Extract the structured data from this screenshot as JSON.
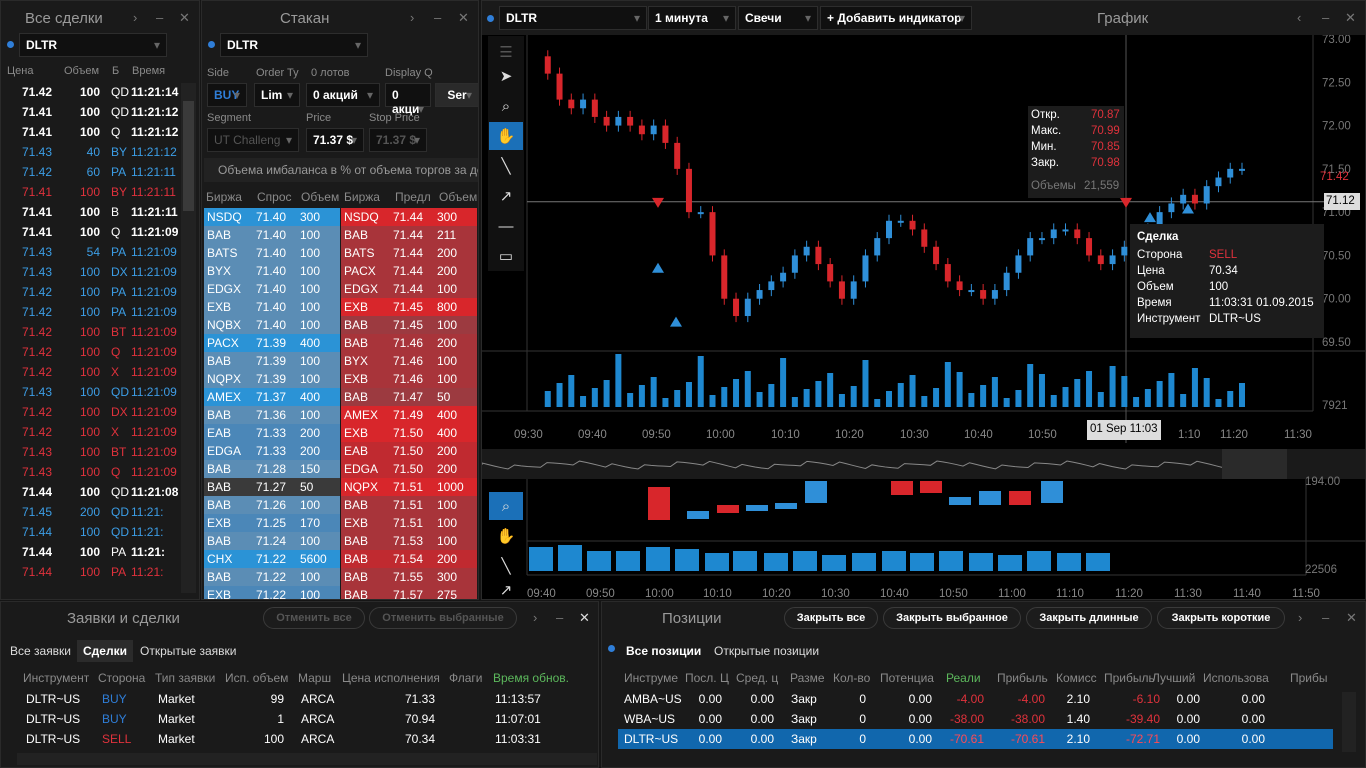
{
  "trades": {
    "title": "Все сделки",
    "symbol": "DLTR",
    "cols": [
      "Цена",
      "Объем",
      "Б",
      "Время"
    ],
    "rows": [
      [
        "71.42",
        "100",
        "QD",
        "11:21:14",
        "w"
      ],
      [
        "71.41",
        "100",
        "QD",
        "11:21:12",
        "w"
      ],
      [
        "71.41",
        "100",
        "Q",
        "11:21:12",
        "w"
      ],
      [
        "71.43",
        "40",
        "BY",
        "11:21:12",
        "b"
      ],
      [
        "71.42",
        "60",
        "PA",
        "11:21:11",
        "b"
      ],
      [
        "71.41",
        "100",
        "BY",
        "11:21:11",
        "r"
      ],
      [
        "71.41",
        "100",
        "B",
        "11:21:11",
        "w"
      ],
      [
        "71.41",
        "100",
        "Q",
        "11:21:09",
        "w"
      ],
      [
        "71.43",
        "54",
        "PA",
        "11:21:09",
        "b"
      ],
      [
        "71.43",
        "100",
        "DX",
        "11:21:09",
        "b"
      ],
      [
        "71.42",
        "100",
        "PA",
        "11:21:09",
        "b"
      ],
      [
        "71.42",
        "100",
        "PA",
        "11:21:09",
        "b"
      ],
      [
        "71.42",
        "100",
        "BT",
        "11:21:09",
        "r"
      ],
      [
        "71.42",
        "100",
        "Q",
        "11:21:09",
        "r"
      ],
      [
        "71.42",
        "100",
        "X",
        "11:21:09",
        "r"
      ],
      [
        "71.43",
        "100",
        "QD",
        "11:21:09",
        "b"
      ],
      [
        "71.42",
        "100",
        "DX",
        "11:21:09",
        "r"
      ],
      [
        "71.42",
        "100",
        "X",
        "11:21:09",
        "r"
      ],
      [
        "71.43",
        "100",
        "BT",
        "11:21:09",
        "r"
      ],
      [
        "71.43",
        "100",
        "Q",
        "11:21:09",
        "r"
      ],
      [
        "71.44",
        "100",
        "QD",
        "11:21:08",
        "w"
      ],
      [
        "71.45",
        "200",
        "QD",
        "11:21:",
        "b"
      ],
      [
        "71.44",
        "100",
        "QD",
        "11:21:",
        "b"
      ],
      [
        "71.44",
        "100",
        "PA",
        "11:21:",
        "w"
      ],
      [
        "71.44",
        "100",
        "PA",
        "11:21:",
        "r"
      ]
    ]
  },
  "dom": {
    "title": "Стакан",
    "symbol": "DLTR",
    "side_label": "Side",
    "side": "BUY",
    "order_label": "Order Ty",
    "order": "Lim",
    "lots_label": "0 лотов",
    "qty": "0 акций",
    "display_label": "Display Q",
    "display": "0 акци",
    "send": "Ser",
    "segment_label": "Segment",
    "segment": "UT Challeng",
    "price_label": "Price",
    "price": "71.37 $",
    "stop_label": "Stop Price",
    "stop": "71.37 $",
    "imbalance": "Объема имбаланса в % от объема торгов за день",
    "cols": [
      "Биржа",
      "Спрос",
      "Объем",
      "Биржа",
      "Предл",
      "Объем"
    ],
    "bids": [
      [
        "NSDQ",
        "71.40",
        "300"
      ],
      [
        "BAB",
        "71.40",
        "100"
      ],
      [
        "BATS",
        "71.40",
        "100"
      ],
      [
        "BYX",
        "71.40",
        "100"
      ],
      [
        "EDGX",
        "71.40",
        "100"
      ],
      [
        "EXB",
        "71.40",
        "100"
      ],
      [
        "NQBX",
        "71.40",
        "100"
      ],
      [
        "PACX",
        "71.39",
        "400"
      ],
      [
        "BAB",
        "71.39",
        "100"
      ],
      [
        "NQPX",
        "71.39",
        "100"
      ],
      [
        "AMEX",
        "71.37",
        "400"
      ],
      [
        "BAB",
        "71.36",
        "100"
      ],
      [
        "EAB",
        "71.33",
        "200"
      ],
      [
        "EDGA",
        "71.33",
        "200"
      ],
      [
        "BAB",
        "71.28",
        "150"
      ],
      [
        "BAB",
        "71.27",
        "50"
      ],
      [
        "BAB",
        "71.26",
        "100"
      ],
      [
        "EXB",
        "71.25",
        "170"
      ],
      [
        "BAB",
        "71.24",
        "100"
      ],
      [
        "CHX",
        "71.22",
        "5600"
      ],
      [
        "BAB",
        "71.22",
        "100"
      ],
      [
        "EXB",
        "71.22",
        "100"
      ]
    ],
    "asks": [
      [
        "NSDQ",
        "71.44",
        "300"
      ],
      [
        "BAB",
        "71.44",
        "211"
      ],
      [
        "BATS",
        "71.44",
        "200"
      ],
      [
        "PACX",
        "71.44",
        "200"
      ],
      [
        "EDGX",
        "71.44",
        "100"
      ],
      [
        "EXB",
        "71.45",
        "800"
      ],
      [
        "BAB",
        "71.45",
        "100"
      ],
      [
        "BAB",
        "71.46",
        "200"
      ],
      [
        "BYX",
        "71.46",
        "100"
      ],
      [
        "EXB",
        "71.46",
        "100"
      ],
      [
        "BAB",
        "71.47",
        "50"
      ],
      [
        "AMEX",
        "71.49",
        "400"
      ],
      [
        "EXB",
        "71.50",
        "400"
      ],
      [
        "EAB",
        "71.50",
        "200"
      ],
      [
        "EDGA",
        "71.50",
        "200"
      ],
      [
        "NQPX",
        "71.51",
        "1000"
      ],
      [
        "BAB",
        "71.51",
        "100"
      ],
      [
        "EXB",
        "71.51",
        "100"
      ],
      [
        "BAB",
        "71.53",
        "100"
      ],
      [
        "BAB",
        "71.54",
        "200"
      ],
      [
        "BAB",
        "71.55",
        "300"
      ],
      [
        "BAB",
        "71.57",
        "275"
      ]
    ]
  },
  "chart": {
    "title": "График",
    "symbol": "DLTR",
    "interval": "1 минута",
    "type": "Свечи",
    "add_indicator": "+ Добавить индикатор",
    "ohlc": {
      "open_label": "Откр.",
      "open": "70.87",
      "high_label": "Макс.",
      "high": "70.99",
      "low_label": "Мин.",
      "low": "70.85",
      "close_label": "Закр.",
      "close": "70.98",
      "vol_label": "Объемы",
      "vol": "21,559"
    },
    "trade_tip": {
      "title": "Сделка",
      "side_label": "Сторона",
      "side": "SELL",
      "price_label": "Цена",
      "price": "70.34",
      "vol_label": "Объем",
      "vol": "100",
      "time_label": "Время",
      "time": "11:03:31 01.09.2015",
      "instr_label": "Инструмент",
      "instr": "DLTR~US"
    },
    "yticks": [
      "73.00",
      "72.50",
      "72.00",
      "71.50",
      "71.00",
      "70.50",
      "70.00",
      "69.50"
    ],
    "last_price": "71.42",
    "cursor_price": "71.12",
    "vol_tick": "7921",
    "xticks": [
      "09:30",
      "09:40",
      "09:50",
      "10:00",
      "10:10",
      "10:20",
      "10:30",
      "10:40",
      "10:50",
      "11:00",
      "11:10",
      "11:20",
      "11:30"
    ],
    "cursor_time": "01 Sep 11:03",
    "price_series": [
      72.8,
      72.6,
      72.3,
      72.2,
      72.3,
      72.1,
      72.0,
      72.1,
      72.0,
      71.9,
      72.0,
      71.8,
      71.5,
      71.0,
      71.0,
      70.5,
      70.0,
      69.8,
      70.0,
      70.1,
      70.2,
      70.3,
      70.5,
      70.6,
      70.4,
      70.2,
      70.0,
      70.2,
      70.5,
      70.7,
      70.9,
      70.9,
      70.8,
      70.6,
      70.4,
      70.2,
      70.1,
      70.1,
      70.0,
      70.1,
      70.3,
      70.5,
      70.7,
      70.7,
      70.8,
      70.8,
      70.7,
      70.5,
      70.4,
      70.5,
      70.6,
      70.7,
      70.8,
      71.0,
      71.1,
      71.2,
      71.1,
      71.3,
      71.4,
      71.5,
      71.5
    ],
    "sub_xticks": [
      "09:40",
      "09:50",
      "10:00",
      "10:10",
      "10:20",
      "10:30",
      "10:40",
      "10:50",
      "11:00",
      "11:10",
      "11:20",
      "11:30",
      "11:40",
      "11:50"
    ],
    "sub_vol_tick": "22506"
  },
  "orders": {
    "title": "Заявки и сделки",
    "cancel_all": "Отменить все",
    "cancel_sel": "Отменить выбранные",
    "tabs": [
      "Все заявки",
      "Сделки",
      "Открытые заявки"
    ],
    "cols": [
      "Инструмент",
      "Сторона",
      "Тип заявки",
      "Исп. объем",
      "Марш",
      "Цена исполнения",
      "Флаги",
      "Время обнов."
    ],
    "rows": [
      [
        "DLTR~US",
        "BUY",
        "Market",
        "99",
        "ARCA",
        "71.33",
        "",
        "11:13:57"
      ],
      [
        "DLTR~US",
        "BUY",
        "Market",
        "1",
        "ARCA",
        "70.94",
        "",
        "11:07:01"
      ],
      [
        "DLTR~US",
        "SELL",
        "Market",
        "100",
        "ARCA",
        "70.34",
        "",
        "11:03:31"
      ]
    ]
  },
  "positions": {
    "title": "Позиции",
    "close_all": "Закрыть все",
    "close_sel": "Закрыть выбранное",
    "close_long": "Закрыть длинные",
    "close_short": "Закрыть короткие",
    "tabs": [
      "Все позиции",
      "Открытые позиции"
    ],
    "cols": [
      "Инструме",
      "Посл. Ц",
      "Сред. ц",
      "Разме",
      "Кол-во",
      "Потенциа",
      "Реали",
      "Прибыль",
      "Комисс",
      "Прибыль",
      "Лучший",
      "Использова",
      "Прибы"
    ],
    "rows": [
      [
        "AMBA~US",
        "0.00",
        "0.00",
        "Закр",
        "0",
        "0.00",
        "-4.00",
        "-4.00",
        "2.10",
        "-6.10",
        "0.00",
        "0.00"
      ],
      [
        "WBA~US",
        "0.00",
        "0.00",
        "Закр",
        "0",
        "0.00",
        "-38.00",
        "-38.00",
        "1.40",
        "-39.40",
        "0.00",
        "0.00"
      ],
      [
        "DLTR~US",
        "0.00",
        "0.00",
        "Закр",
        "0",
        "0.00",
        "-70.61",
        "-70.61",
        "2.10",
        "-72.71",
        "0.00",
        "0.00"
      ]
    ]
  }
}
